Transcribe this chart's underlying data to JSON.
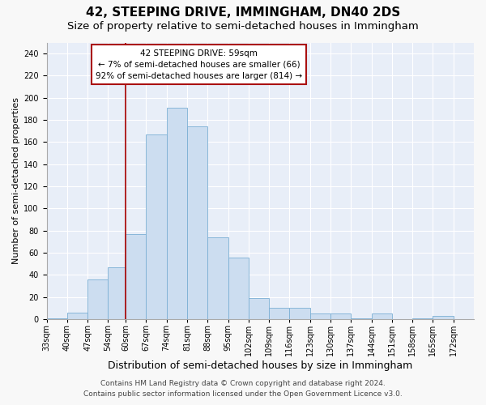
{
  "title1": "42, STEEPING DRIVE, IMMINGHAM, DN40 2DS",
  "title2": "Size of property relative to semi-detached houses in Immingham",
  "xlabel": "Distribution of semi-detached houses by size in Immingham",
  "ylabel": "Number of semi-detached properties",
  "footer1": "Contains HM Land Registry data © Crown copyright and database right 2024.",
  "footer2": "Contains public sector information licensed under the Open Government Licence v3.0.",
  "bin_labels": [
    "33sqm",
    "40sqm",
    "47sqm",
    "54sqm",
    "60sqm",
    "67sqm",
    "74sqm",
    "81sqm",
    "88sqm",
    "95sqm",
    "102sqm",
    "109sqm",
    "116sqm",
    "123sqm",
    "130sqm",
    "137sqm",
    "144sqm",
    "151sqm",
    "158sqm",
    "165sqm",
    "172sqm"
  ],
  "bar_heights": [
    1,
    6,
    36,
    47,
    77,
    167,
    191,
    174,
    74,
    56,
    19,
    10,
    10,
    5,
    5,
    1,
    5,
    0,
    1,
    3,
    0
  ],
  "bin_edges": [
    33,
    40,
    47,
    54,
    60,
    67,
    74,
    81,
    88,
    95,
    102,
    109,
    116,
    123,
    130,
    137,
    144,
    151,
    158,
    165,
    172,
    179
  ],
  "vline_x": 60,
  "bar_color": "#ccddf0",
  "bar_edge_color": "#7bafd4",
  "vline_color": "#aa1111",
  "annotation_line1": "42 STEEPING DRIVE: 59sqm",
  "annotation_line2": "← 7% of semi-detached houses are smaller (66)",
  "annotation_line3": "92% of semi-detached houses are larger (814) →",
  "annotation_box_fc": "#ffffff",
  "annotation_box_ec": "#aa1111",
  "ylim_max": 250,
  "yticks": [
    0,
    20,
    40,
    60,
    80,
    100,
    120,
    140,
    160,
    180,
    200,
    220,
    240
  ],
  "bg_color": "#e8eef8",
  "grid_color": "#ffffff",
  "fig_bg": "#f8f8f8",
  "title1_fontsize": 11,
  "title2_fontsize": 9.5,
  "xlabel_fontsize": 9,
  "ylabel_fontsize": 8,
  "tick_fontsize": 7,
  "annot_fontsize": 7.5,
  "footer_fontsize": 6.5
}
